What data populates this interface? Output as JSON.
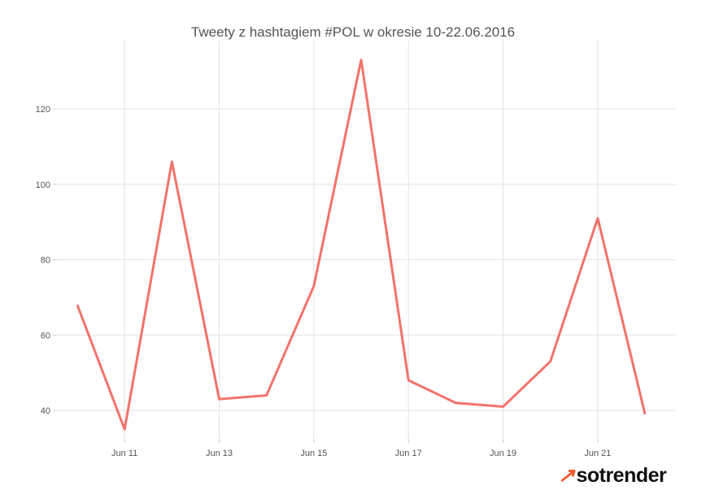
{
  "chart_data": {
    "type": "line",
    "title": "Tweety z hashtagiem #POL w okresie 10-22.06.2016",
    "xlabel": "",
    "ylabel": "",
    "x": [
      "2016-06-10",
      "2016-06-11",
      "2016-06-12",
      "2016-06-13",
      "2016-06-14",
      "2016-06-15",
      "2016-06-16",
      "2016-06-17",
      "2016-06-18",
      "2016-06-19",
      "2016-06-20",
      "2016-06-21",
      "2016-06-22"
    ],
    "values": [
      68,
      35,
      106,
      43,
      44,
      73,
      133,
      48,
      42,
      41,
      53,
      91,
      39
    ],
    "x_ticks": [
      "Jun 11",
      "Jun 13",
      "Jun 15",
      "Jun 17",
      "Jun 19",
      "Jun 21"
    ],
    "y_ticks": [
      40,
      60,
      80,
      100,
      120
    ],
    "grid": true,
    "line_color": "#f2736b"
  },
  "logo": "sotrender"
}
